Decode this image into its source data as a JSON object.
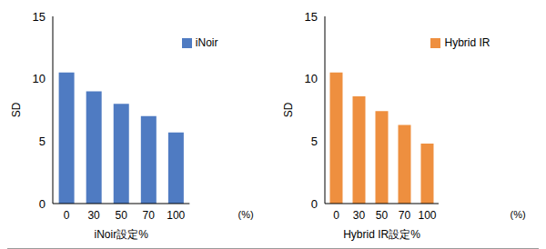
{
  "chart_data": [
    {
      "type": "bar",
      "categories": [
        "0",
        "30",
        "50",
        "70",
        "100"
      ],
      "series": [
        {
          "name": "iNoir",
          "color": "#4f7bc2",
          "values": [
            10.5,
            9.0,
            8.0,
            7.0,
            5.7
          ]
        }
      ],
      "x_label": "iNoir設定%",
      "y_label": "SD",
      "ylim": [
        0,
        15
      ],
      "yticks": [
        0,
        5,
        10,
        15
      ],
      "legend": "upper right",
      "annotations": [
        "(%)"
      ]
    },
    {
      "type": "bar",
      "categories": [
        "0",
        "30",
        "50",
        "70",
        "100"
      ],
      "series": [
        {
          "name": "Hybrid IR",
          "color": "#ee8f3f",
          "values": [
            10.5,
            8.6,
            7.4,
            6.3,
            4.8
          ]
        }
      ],
      "x_label": "Hybrid IR設定%",
      "y_label": "SD",
      "ylim": [
        0,
        15
      ],
      "yticks": [
        0,
        5,
        10,
        15
      ],
      "legend": "upper right",
      "annotations": [
        "(%)"
      ]
    }
  ]
}
